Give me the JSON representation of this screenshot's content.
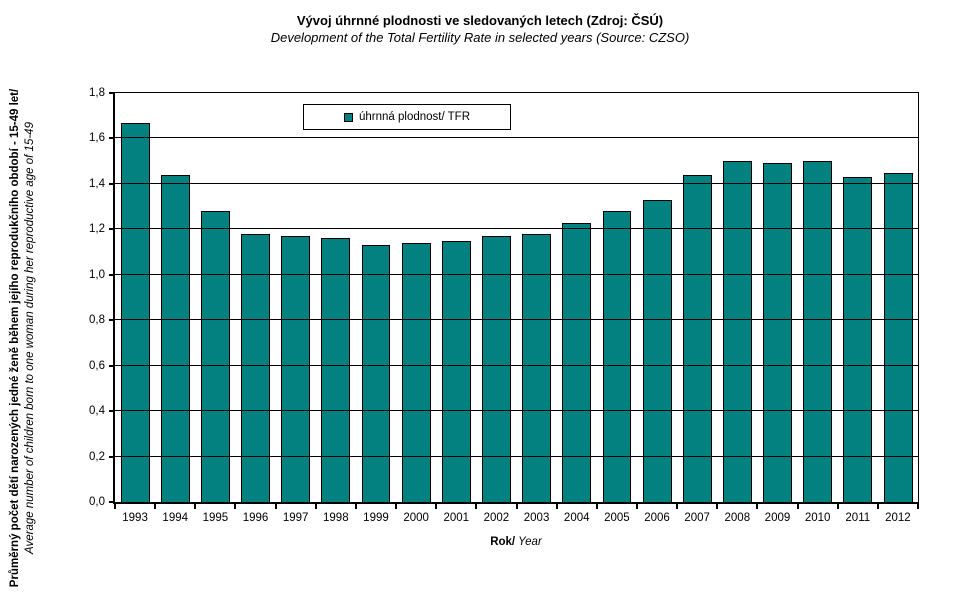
{
  "title": "Vývoj úhrnné plodnosti ve sledovaných letech (Zdroj: ČSÚ)",
  "subtitle": "Development of the Total Fertility Rate in selected years (Source: CZSO)",
  "legend": {
    "label": "úhrnná plodnost/ TFR",
    "marker_color": "#038080"
  },
  "axes": {
    "y_title_czech": "Průměrný počet dětí narozených jedné ženě během jejího reprodukčního období - 15-49 let/",
    "y_title_english": " Average number of children born to one woman during her reproductive age of 15-49",
    "x_title_czech": "Rok/",
    "x_title_english": " Year",
    "y_tick_labels": [
      "0,0",
      "0,2",
      "0,4",
      "0,6",
      "0,8",
      "1,0",
      "1,2",
      "1,4",
      "1,6",
      "1,8"
    ]
  },
  "chart_data": {
    "type": "bar",
    "title": "Vývoj úhrnné plodnosti ve sledovaných letech (Zdroj: ČSÚ) / Development of the Total Fertility Rate in selected years (Source: CZSO)",
    "categories": [
      "1993",
      "1994",
      "1995",
      "1996",
      "1997",
      "1998",
      "1999",
      "2000",
      "2001",
      "2002",
      "2003",
      "2004",
      "2005",
      "2006",
      "2007",
      "2008",
      "2009",
      "2010",
      "2011",
      "2012"
    ],
    "series": [
      {
        "name": "úhrnná plodnost/ TFR",
        "values": [
          1.67,
          1.44,
          1.28,
          1.18,
          1.17,
          1.16,
          1.13,
          1.14,
          1.15,
          1.17,
          1.18,
          1.23,
          1.28,
          1.33,
          1.44,
          1.5,
          1.49,
          1.5,
          1.43,
          1.45
        ]
      }
    ],
    "xlabel": "Rok/ Year",
    "ylabel": "Průměrný počet dětí narozených jedné ženě během jejího reprodukčního období - 15-49 let/ Average number of children born to one woman during her reproductive age of 15-49",
    "ylim": [
      0,
      1.8
    ],
    "ytick_step": 0.2,
    "decimal_separator": ",",
    "grid": true,
    "bar_color": "#038080",
    "legend_position": "top-inside-left-of-center"
  }
}
